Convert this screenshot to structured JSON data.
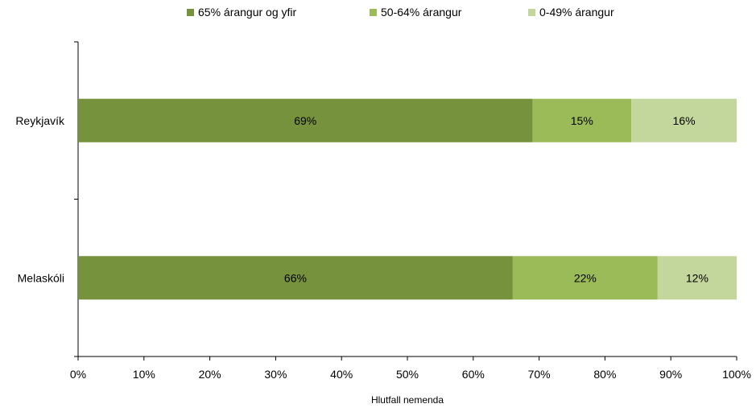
{
  "chart_data": {
    "type": "bar",
    "orientation": "horizontal",
    "stacked": true,
    "categories": [
      "Reykjavík",
      "Melaskóli"
    ],
    "series": [
      {
        "name": "65% árangur og yfir",
        "values": [
          69,
          66
        ],
        "labels": [
          "69%",
          "66%"
        ],
        "color": "#76923c"
      },
      {
        "name": "50-64% árangur",
        "values": [
          15,
          22
        ],
        "labels": [
          "15%",
          "22%"
        ],
        "color": "#9bbb59"
      },
      {
        "name": "0-49% árangur",
        "values": [
          16,
          12
        ],
        "labels": [
          "16%",
          "12%"
        ],
        "color": "#c3d69b"
      }
    ],
    "xlabel": "Hlutfall nemenda",
    "ylabel": "",
    "title": "",
    "xlim": [
      0,
      100
    ],
    "x_ticks": [
      "0%",
      "10%",
      "20%",
      "30%",
      "40%",
      "50%",
      "60%",
      "70%",
      "80%",
      "90%",
      "100%"
    ],
    "legend_position": "top",
    "grid": false
  }
}
